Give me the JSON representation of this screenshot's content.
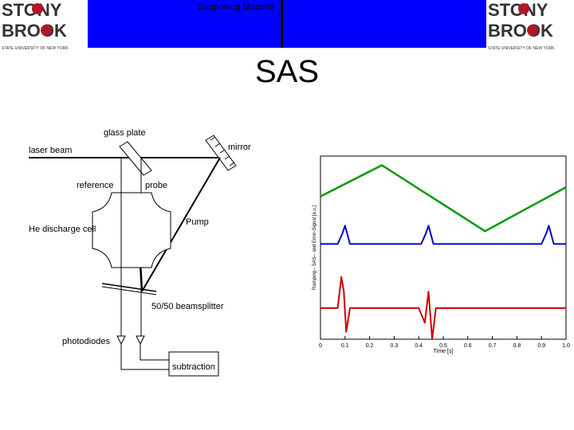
{
  "header": {
    "caption": "Supporting Material",
    "logo_left": {
      "line1": "STONY",
      "line2": "BROOK",
      "subline": "STATE UNIVERSITY OF NEW YORK"
    },
    "logo_right": {
      "line1": "STONY",
      "line2": "BROOK",
      "subline": "STATE UNIVERSITY OF NEW YORK"
    }
  },
  "slide": {
    "title": "SAS"
  },
  "diagram": {
    "labels": {
      "glass_plate": "glass plate",
      "laser_beam": "laser beam",
      "mirror": "mirror",
      "reference": "reference",
      "probe": "probe",
      "pump": "Pump",
      "cell": "He discharge cell",
      "beamsplitter": "50/50 beamsplitter",
      "photodiodes": "photodiodes",
      "subtraction": "subtraction"
    }
  },
  "chart_data": {
    "type": "line",
    "title": "",
    "xlabel": "Time [s]",
    "ylabel": "Ramping-- SAS-- and Error-Signal [a.u.]",
    "xlim": [
      0,
      1.0
    ],
    "xticks": [
      "0",
      "0.1",
      "0.2",
      "0.3",
      "0.4",
      "0.5",
      "0.6",
      "0.7",
      "0.8",
      "0.9",
      "1.0"
    ],
    "ylim": [
      0,
      1
    ],
    "grid": false,
    "colors": {
      "ramp": "#009900",
      "sas": "#0000cc",
      "error": "#cc0000"
    },
    "series": [
      {
        "x": [
          0,
          0.25,
          0.67,
          1.0
        ],
        "y": [
          0.78,
          0.95,
          0.59,
          0.83
        ]
      },
      {
        "x": [
          0,
          0.07,
          0.09,
          0.1,
          0.12,
          0.41,
          0.43,
          0.44,
          0.46,
          0.9,
          0.92,
          0.93,
          0.95,
          1.0
        ],
        "y": [
          0.52,
          0.52,
          0.58,
          0.62,
          0.52,
          0.52,
          0.58,
          0.62,
          0.52,
          0.52,
          0.58,
          0.62,
          0.52,
          0.52
        ]
      },
      {
        "x": [
          0,
          0.07,
          0.085,
          0.095,
          0.105,
          0.12,
          0.4,
          0.425,
          0.44,
          0.455,
          0.47,
          1.0
        ],
        "y": [
          0.17,
          0.17,
          0.34,
          0.26,
          0.04,
          0.17,
          0.17,
          0.09,
          0.26,
          0.0,
          0.17,
          0.17
        ]
      }
    ]
  }
}
